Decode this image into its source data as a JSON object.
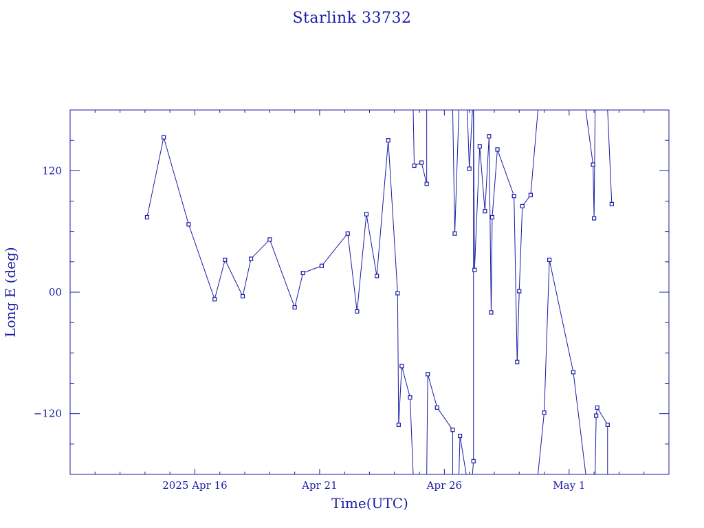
{
  "chart_data": {
    "type": "line",
    "title": "Starlink 33732",
    "xlabel": "Time(UTC)",
    "ylabel": "Long E (deg)",
    "color": "#1a1aa6",
    "xlim": [
      "2025-04-11",
      "2025-05-05"
    ],
    "ylim": [
      -180,
      180
    ],
    "x_tick_labels": [
      {
        "date": "2025-04-16",
        "label": "2025 Apr 16"
      },
      {
        "date": "2025-04-21",
        "label": "Apr 21"
      },
      {
        "date": "2025-04-26",
        "label": "Apr 26"
      },
      {
        "date": "2025-05-01",
        "label": "May  1"
      }
    ],
    "y_tick_labels": [
      {
        "value": 120,
        "label": "120"
      },
      {
        "value": 0,
        "label": "00"
      },
      {
        "value": -120,
        "label": "−120"
      }
    ],
    "grid": false,
    "series": [
      {
        "markers": "square",
        "points": [
          {
            "x": "2025-04-14 02:00",
            "y": 74
          },
          {
            "x": "2025-04-14 18:00",
            "y": 153
          },
          {
            "x": "2025-04-15 18:00",
            "y": 67
          },
          {
            "x": "2025-04-16 19:00",
            "y": -7
          },
          {
            "x": "2025-04-17 05:00",
            "y": 32
          },
          {
            "x": "2025-04-17 22:00",
            "y": -4
          },
          {
            "x": "2025-04-18 06:00",
            "y": 33
          },
          {
            "x": "2025-04-19 00:00",
            "y": 52
          },
          {
            "x": "2025-04-20 00:00",
            "y": -15
          },
          {
            "x": "2025-04-20 08:00",
            "y": 19
          },
          {
            "x": "2025-04-21 02:00",
            "y": 26
          },
          {
            "x": "2025-04-22 03:00",
            "y": 58
          },
          {
            "x": "2025-04-22 12:00",
            "y": -19
          },
          {
            "x": "2025-04-22 21:00",
            "y": 77
          },
          {
            "x": "2025-04-23 07:00",
            "y": 16
          },
          {
            "x": "2025-04-23 18:00",
            "y": 150
          },
          {
            "x": "2025-04-24 03:00",
            "y": -1
          },
          {
            "x": "2025-04-24 04:00",
            "y": -131
          },
          {
            "x": "2025-04-24 07:00",
            "y": -73
          },
          {
            "x": "2025-04-24 15:00",
            "y": -104
          },
          {
            "x": "2025-04-24 18:00",
            "y": -180,
            "break_after": true
          },
          {
            "x": "2025-04-24 18:00",
            "y": 180
          },
          {
            "x": "2025-04-24 19:00",
            "y": 125
          },
          {
            "x": "2025-04-25 02:00",
            "y": 128
          },
          {
            "x": "2025-04-25 07:00",
            "y": 107
          },
          {
            "x": "2025-04-25 07:00",
            "y": 180,
            "break_after": true
          },
          {
            "x": "2025-04-25 07:00",
            "y": -180
          },
          {
            "x": "2025-04-25 08:00",
            "y": -81
          },
          {
            "x": "2025-04-25 17:00",
            "y": -114
          },
          {
            "x": "2025-04-26 08:00",
            "y": -136
          },
          {
            "x": "2025-04-26 08:00",
            "y": -180,
            "break_after": true
          },
          {
            "x": "2025-04-26 08:00",
            "y": 180
          },
          {
            "x": "2025-04-26 10:00",
            "y": 58
          },
          {
            "x": "2025-04-26 14:00",
            "y": 180,
            "break_after": true
          },
          {
            "x": "2025-04-26 14:00",
            "y": -180
          },
          {
            "x": "2025-04-26 15:00",
            "y": -142
          },
          {
            "x": "2025-04-26 21:00",
            "y": -180,
            "break_after": true
          },
          {
            "x": "2025-04-26 22:00",
            "y": 180
          },
          {
            "x": "2025-04-27 00:00",
            "y": 122
          },
          {
            "x": "2025-04-27 03:00",
            "y": 180,
            "break_after": true
          },
          {
            "x": "2025-04-27 03:00",
            "y": -180
          },
          {
            "x": "2025-04-27 04:00",
            "y": -167
          },
          {
            "x": "2025-04-27 04:00",
            "y": 180
          },
          {
            "x": "2025-04-27 05:00",
            "y": 22
          },
          {
            "x": "2025-04-27 10:00",
            "y": 144
          },
          {
            "x": "2025-04-27 15:00",
            "y": 80
          },
          {
            "x": "2025-04-27 19:00",
            "y": 154
          },
          {
            "x": "2025-04-27 21:00",
            "y": -20
          },
          {
            "x": "2025-04-27 22:00",
            "y": 74
          },
          {
            "x": "2025-04-28 03:00",
            "y": 141
          },
          {
            "x": "2025-04-28 19:00",
            "y": 95
          },
          {
            "x": "2025-04-28 22:00",
            "y": -69
          },
          {
            "x": "2025-04-29 00:00",
            "y": 1
          },
          {
            "x": "2025-04-29 03:00",
            "y": 85
          },
          {
            "x": "2025-04-29 11:00",
            "y": 96
          },
          {
            "x": "2025-04-29 18:00",
            "y": 180,
            "break_after": true
          },
          {
            "x": "2025-04-29 18:00",
            "y": -180
          },
          {
            "x": "2025-04-30 00:00",
            "y": -119
          },
          {
            "x": "2025-04-30 05:00",
            "y": 32
          },
          {
            "x": "2025-05-01 04:00",
            "y": -79
          },
          {
            "x": "2025-05-01 16:00",
            "y": -180,
            "break_after": true
          },
          {
            "x": "2025-05-01 16:00",
            "y": 180
          },
          {
            "x": "2025-05-01 23:00",
            "y": 126
          },
          {
            "x": "2025-05-02 00:00",
            "y": 73
          },
          {
            "x": "2025-05-02 01:00",
            "y": 180,
            "break_after": true
          },
          {
            "x": "2025-05-02 01:00",
            "y": -180
          },
          {
            "x": "2025-05-02 02:00",
            "y": -122
          },
          {
            "x": "2025-05-02 03:00",
            "y": -114
          },
          {
            "x": "2025-05-02 13:00",
            "y": -131
          },
          {
            "x": "2025-05-02 13:00",
            "y": -180,
            "break_after": true
          },
          {
            "x": "2025-05-02 13:00",
            "y": 180
          },
          {
            "x": "2025-05-02 17:00",
            "y": 87
          }
        ]
      }
    ]
  }
}
